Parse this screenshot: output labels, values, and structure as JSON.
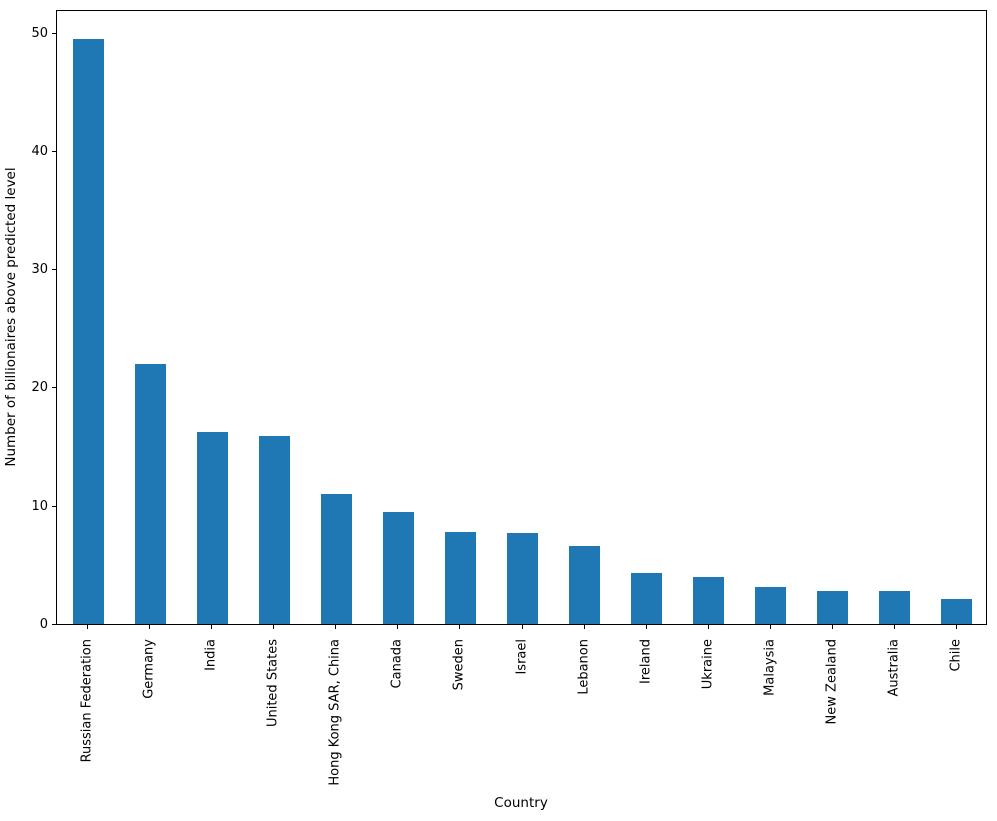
{
  "chart_data": {
    "type": "bar",
    "title": "",
    "xlabel": "Country",
    "ylabel": "Number of billionaires above predicted level",
    "categories": [
      "Russian Federation",
      "Germany",
      "India",
      "United States",
      "Hong Kong SAR, China",
      "Canada",
      "Sweden",
      "Israel",
      "Lebanon",
      "Ireland",
      "Ukraine",
      "Malaysia",
      "New Zealand",
      "Australia",
      "Chile"
    ],
    "values": [
      49.5,
      22,
      16.2,
      15.9,
      11,
      9.5,
      7.8,
      7.7,
      6.6,
      4.3,
      4,
      3.1,
      2.8,
      2.8,
      2.1
    ],
    "yticks": [
      0,
      10,
      20,
      30,
      40,
      50
    ],
    "ylim": [
      0,
      52
    ],
    "x_tick_rotation": 90,
    "grid": false,
    "legend": null,
    "bar_width_fraction": 0.5,
    "bar_color": "#1f77b4",
    "axis_color": "#000000",
    "background_color": "#ffffff"
  }
}
